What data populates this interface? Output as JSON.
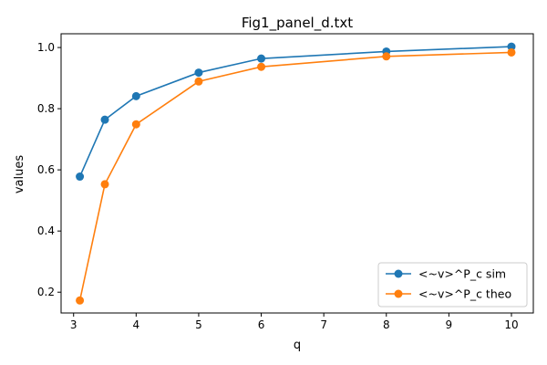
{
  "chart_data": {
    "type": "line",
    "title": "Fig1_panel_d.txt",
    "xlabel": "q",
    "ylabel": "values",
    "xlim": [
      2.8,
      10.35
    ],
    "ylim": [
      0.132,
      1.045
    ],
    "xticks": [
      3,
      4,
      5,
      6,
      7,
      8,
      9,
      10
    ],
    "yticks": [
      0.2,
      0.4,
      0.6,
      0.8,
      1.0
    ],
    "ytick_labels": [
      "0.2",
      "0.4",
      "0.6",
      "0.8",
      "1.0"
    ],
    "grid": false,
    "legend_position": "lower-right",
    "x": [
      3.1,
      3.5,
      4,
      5,
      6,
      8,
      10
    ],
    "series": [
      {
        "name": "<~v>^P_c sim",
        "color": "#1f77b4",
        "values": [
          0.578,
          0.764,
          0.841,
          0.918,
          0.964,
          0.987,
          1.003
        ]
      },
      {
        "name": "<~v>^P_c theo",
        "color": "#ff7f0e",
        "values": [
          0.173,
          0.553,
          0.749,
          0.889,
          0.937,
          0.971,
          0.984
        ]
      }
    ]
  }
}
